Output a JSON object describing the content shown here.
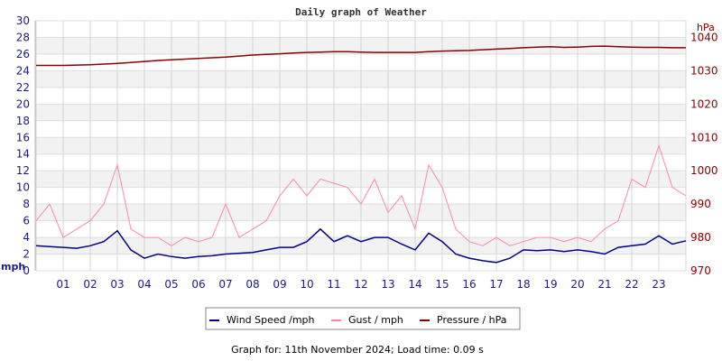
{
  "chart_data": {
    "type": "line",
    "title": "Daily graph of Weather",
    "ylabel_left": "mph",
    "ylabel_right": "hPa",
    "xlim": [
      0,
      24
    ],
    "ylim_left": [
      0,
      30
    ],
    "ylim_right": [
      970,
      1045
    ],
    "x_ticks": [
      "01",
      "02",
      "03",
      "04",
      "05",
      "06",
      "07",
      "08",
      "09",
      "10",
      "11",
      "12",
      "13",
      "14",
      "15",
      "16",
      "17",
      "18",
      "19",
      "20",
      "21",
      "22",
      "23"
    ],
    "y_ticks_left": [
      "0",
      "2",
      "4",
      "6",
      "8",
      "10",
      "12",
      "14",
      "16",
      "18",
      "20",
      "22",
      "24",
      "26",
      "28",
      "30"
    ],
    "y_ticks_right": [
      "970",
      "980",
      "990",
      "1000",
      "1010",
      "1020",
      "1030",
      "1040"
    ],
    "grid": true,
    "legend_position": "bottom",
    "x_hours": [
      0,
      0.5,
      1,
      1.5,
      2,
      2.5,
      3,
      3.5,
      4,
      4.5,
      5,
      5.5,
      6,
      6.5,
      7,
      7.5,
      8,
      8.5,
      9,
      9.5,
      10,
      10.5,
      11,
      11.5,
      12,
      12.5,
      13,
      13.5,
      14,
      14.5,
      15,
      15.5,
      16,
      16.5,
      17,
      17.5,
      18,
      18.5,
      19,
      19.5,
      20,
      20.5,
      21,
      21.5,
      22,
      22.5,
      23,
      23.5,
      24
    ],
    "series": [
      {
        "name": "Wind Speed /mph",
        "color": "#00008b",
        "axis": "left",
        "values": [
          3,
          2.9,
          2.8,
          2.7,
          3,
          3.5,
          4.8,
          2.5,
          1.5,
          2,
          1.7,
          1.5,
          1.7,
          1.8,
          2,
          2.1,
          2.2,
          2.5,
          2.8,
          2.8,
          3.5,
          5,
          3.5,
          4.2,
          3.5,
          4,
          4,
          3.2,
          2.5,
          4.5,
          3.5,
          2,
          1.5,
          1.2,
          1,
          1.5,
          2.5,
          2.4,
          2.5,
          2.3,
          2.5,
          2.3,
          2,
          2.8,
          3,
          3.2,
          4.2,
          3.2,
          3.6
        ]
      },
      {
        "name": "Gust / mph",
        "color": "#ff88aa",
        "axis": "left",
        "values": [
          6,
          8,
          4,
          5,
          6,
          8,
          12.7,
          5,
          4,
          4,
          3,
          4,
          3.5,
          4,
          8,
          4,
          5,
          6,
          9,
          11,
          9,
          11,
          10.5,
          10,
          8,
          11,
          7,
          9,
          5,
          12.7,
          10,
          5,
          3.5,
          3,
          4,
          3,
          3.5,
          4,
          4,
          3.5,
          4,
          3.5,
          5,
          6,
          11,
          10,
          15,
          10,
          9
        ]
      },
      {
        "name": "Pressure / hPa",
        "color": "#8b0000",
        "axis": "right",
        "values": [
          1031.6,
          1031.6,
          1031.6,
          1031.7,
          1031.8,
          1032,
          1032.2,
          1032.5,
          1032.8,
          1033.1,
          1033.3,
          1033.5,
          1033.7,
          1033.9,
          1034.1,
          1034.4,
          1034.7,
          1034.9,
          1035.1,
          1035.3,
          1035.5,
          1035.6,
          1035.7,
          1035.7,
          1035.6,
          1035.5,
          1035.5,
          1035.5,
          1035.5,
          1035.7,
          1035.9,
          1036,
          1036.1,
          1036.3,
          1036.5,
          1036.7,
          1036.9,
          1037.1,
          1037.2,
          1037,
          1037.1,
          1037.3,
          1037.4,
          1037.2,
          1037.1,
          1037,
          1037,
          1036.9,
          1036.9
        ]
      }
    ]
  },
  "footer": "Graph for: 11th November 2024; Load time: 0.09 s"
}
